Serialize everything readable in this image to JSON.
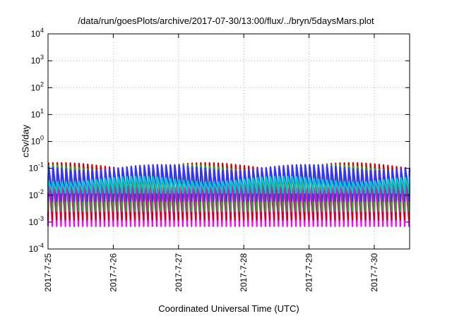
{
  "title": "/data/run/goesPlots/archive/2017-07-30/13:00/flux/../bryn/5daysMars.plot",
  "chart_data": {
    "type": "line",
    "title": "/data/run/goesPlots/archive/2017-07-30/13:00/flux/../bryn/5daysMars.plot",
    "xlabel": "Coordinated Universal Time (UTC)",
    "ylabel": "cSv/day",
    "y_scale": "log",
    "ylim": [
      0.0001,
      10000
    ],
    "y_ticks": [
      {
        "value": 0.0001,
        "base": "10",
        "exp": "-4"
      },
      {
        "value": 0.001,
        "base": "10",
        "exp": "-3"
      },
      {
        "value": 0.01,
        "base": "10",
        "exp": "-2"
      },
      {
        "value": 0.1,
        "base": "10",
        "exp": "-1"
      },
      {
        "value": 1,
        "base": "10",
        "exp": "0"
      },
      {
        "value": 10,
        "base": "10",
        "exp": "1"
      },
      {
        "value": 100,
        "base": "10",
        "exp": "2"
      },
      {
        "value": 1000,
        "base": "10",
        "exp": "3"
      },
      {
        "value": 10000,
        "base": "10",
        "exp": "4"
      }
    ],
    "x_tick_labels": [
      "2017-7-25",
      "2017-7-26",
      "2017-7-27",
      "2017-7-28",
      "2017-7-29",
      "2017-7-30"
    ],
    "xlim": [
      "2017-07-25 00:00",
      "2017-07-30 13:00"
    ],
    "grid": true,
    "pulse_period_hours": 1.6,
    "series": [
      {
        "color": "#ff00ff",
        "peak": 0.025,
        "trough": 0.0007
      },
      {
        "color": "#cc0000",
        "peak": 0.13,
        "trough": 0.0012
      },
      {
        "color": "#22aa22",
        "peak": 0.11,
        "trough": 0.0025
      },
      {
        "color": "#3333ff",
        "peak": 0.11,
        "trough": 0.006
      },
      {
        "color": "#00cccc",
        "peak": 0.04,
        "trough": 0.012
      }
    ]
  }
}
